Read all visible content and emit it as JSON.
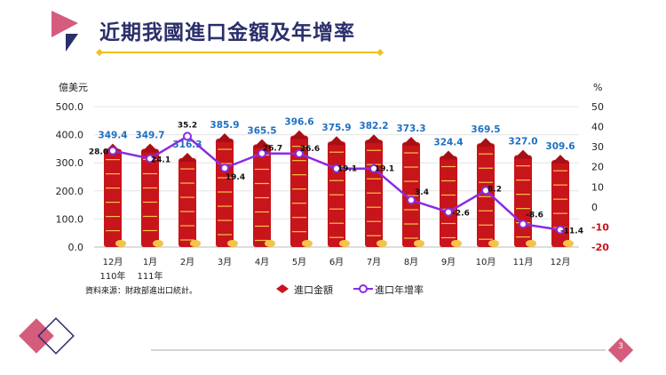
{
  "page": {
    "title": "近期我國進口金額及年增率",
    "page_number": "3"
  },
  "chart": {
    "unit_left": "億美元",
    "unit_right": "%",
    "source": "資料來源：財政部進出口統計。",
    "legend_bar": "進口金額",
    "legend_line": "進口年增率"
  },
  "colors": {
    "title": "#2a2f6b",
    "bar_red": "#c8141b",
    "line": "#8a2be2",
    "bar_label": "#1f6fc4",
    "accent_pink": "#d45c7c",
    "accent_yellow": "#f0c020"
  },
  "chart_data": {
    "type": "bar",
    "categories": [
      "12月\n110年",
      "1月\n111年",
      "2月",
      "3月",
      "4月",
      "5月",
      "6月",
      "7月",
      "8月",
      "9月",
      "10月",
      "11月",
      "12月"
    ],
    "series": [
      {
        "name": "進口金額",
        "type": "bar",
        "axis": "left",
        "values": [
          349.4,
          349.7,
          316.3,
          385.9,
          365.5,
          396.6,
          375.9,
          382.2,
          373.3,
          324.4,
          369.5,
          327.0,
          309.6
        ]
      },
      {
        "name": "進口年增率",
        "type": "line",
        "axis": "right",
        "values": [
          28.0,
          24.1,
          35.2,
          19.4,
          26.7,
          26.6,
          19.1,
          19.1,
          3.4,
          -2.6,
          8.2,
          -8.6,
          -11.4
        ]
      }
    ],
    "ylim_left": [
      0,
      500
    ],
    "yticks_left": [
      "0.0",
      "100.0",
      "200.0",
      "300.0",
      "400.0",
      "500.0"
    ],
    "ylim_right": [
      -20,
      50
    ],
    "yticks_right": [
      "50",
      "40",
      "30",
      "20",
      "10",
      "0",
      "-10",
      "-20"
    ],
    "bar_labels": [
      "349.4",
      "349.7",
      "316.3",
      "385.9",
      "365.5",
      "396.6",
      "375.9",
      "382.2",
      "373.3",
      "324.4",
      "369.5",
      "327.0",
      "309.6"
    ],
    "line_labels": [
      "28.0",
      "24.1",
      "35.2",
      "19.4",
      "26.7",
      "26.6",
      "19.1",
      "19.1",
      "3.4",
      "-2.6",
      "8.2",
      "-8.6",
      "-11.4"
    ],
    "grid": true,
    "legend": "bottom"
  }
}
